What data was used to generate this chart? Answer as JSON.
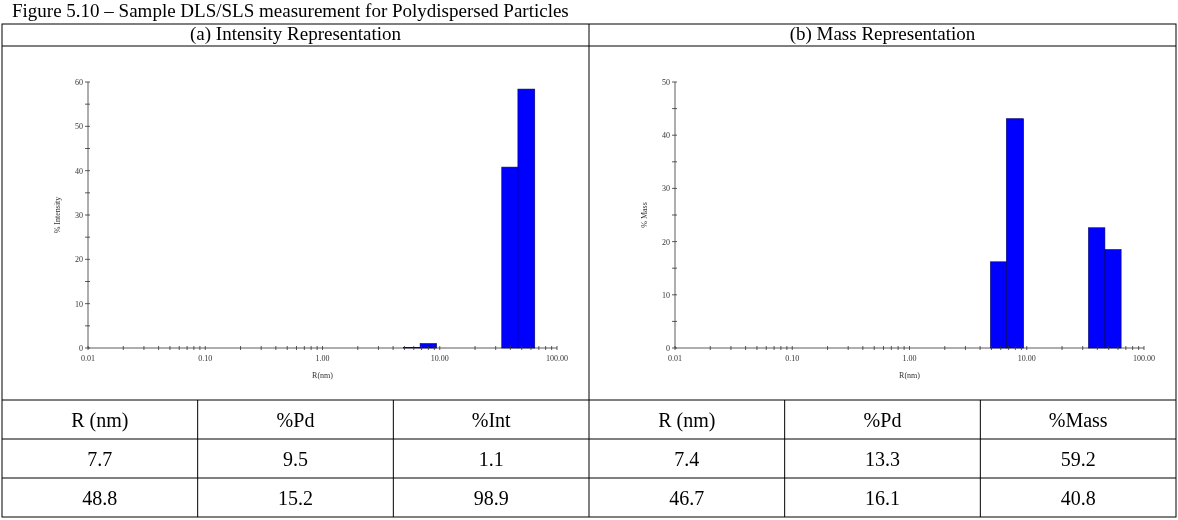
{
  "chart_data": [
    {
      "type": "histogram",
      "title": "Figure 5.10 – Sample DLS/SLS measurement for Polydispersed Particles",
      "subtitle": "(a) Intensity Representation",
      "xlabel": "R(nm)",
      "ylabel": "% Intensity",
      "log": "x",
      "color": "#0000ff",
      "bins": [
        4.9,
        6.8,
        9.4,
        33.8,
        46.4,
        64.6
      ],
      "values": [
        0.1,
        1.0,
        0,
        40.8,
        58.4
      ],
      "xlim": [
        0.01,
        100
      ],
      "xticks": [
        {
          "value": 0.01,
          "label": "0.01"
        },
        {
          "value": 0.02,
          "label": null
        },
        {
          "value": 0.03,
          "label": null
        },
        {
          "value": 0.04,
          "label": null
        },
        {
          "value": 0.05,
          "label": null
        },
        {
          "value": 0.06,
          "label": null
        },
        {
          "value": 0.07,
          "label": null
        },
        {
          "value": 0.08,
          "label": null
        },
        {
          "value": 0.09,
          "label": null
        },
        {
          "value": 0.1,
          "label": "0.10"
        },
        {
          "value": 0.2,
          "label": null
        },
        {
          "value": 0.3,
          "label": null
        },
        {
          "value": 0.4,
          "label": null
        },
        {
          "value": 0.5,
          "label": null
        },
        {
          "value": 0.6,
          "label": null
        },
        {
          "value": 0.7,
          "label": null
        },
        {
          "value": 0.8,
          "label": null
        },
        {
          "value": 0.9,
          "label": null
        },
        {
          "value": 1,
          "label": "1.00"
        },
        {
          "value": 2,
          "label": null
        },
        {
          "value": 3,
          "label": null
        },
        {
          "value": 4,
          "label": null
        },
        {
          "value": 5,
          "label": null
        },
        {
          "value": 6,
          "label": null
        },
        {
          "value": 7,
          "label": null
        },
        {
          "value": 8,
          "label": null
        },
        {
          "value": 9,
          "label": null
        },
        {
          "value": 10,
          "label": "10.00"
        },
        {
          "value": 20,
          "label": null
        },
        {
          "value": 30,
          "label": null
        },
        {
          "value": 40,
          "label": null
        },
        {
          "value": 50,
          "label": null
        },
        {
          "value": 60,
          "label": null
        },
        {
          "value": 70,
          "label": null
        },
        {
          "value": 80,
          "label": null
        },
        {
          "value": 90,
          "label": null
        },
        {
          "value": 100,
          "label": "100.00"
        }
      ],
      "ylim": [
        0,
        60
      ],
      "yticks": [
        0,
        {
          "value": 5,
          "label": null
        },
        10,
        {
          "value": 15,
          "label": null
        },
        20,
        {
          "value": 25,
          "label": null
        },
        30,
        {
          "value": 35,
          "label": null
        },
        40,
        {
          "value": 45,
          "label": null
        },
        50,
        {
          "value": 55,
          "label": null
        },
        60
      ],
      "grid": false,
      "annotations": [
        "R (nm)",
        "%Pd",
        "%Int",
        "7.7",
        "9.5",
        "1.1",
        "48.8",
        "15.2",
        "98.9"
      ]
    },
    {
      "type": "histogram",
      "subtitle": "(b) Mass Representation",
      "xlabel": "R(nm)",
      "ylabel": "% Mass",
      "log": "x",
      "color": "#0000ff",
      "bins": [
        4.9,
        6.7,
        9.4,
        33.6,
        46.4,
        63.8
      ],
      "values": [
        16.2,
        43.1,
        0,
        22.6,
        18.5
      ],
      "xlim": [
        0.01,
        100
      ],
      "xticks": [
        {
          "value": 0.01,
          "label": "0.01"
        },
        {
          "value": 0.02,
          "label": null
        },
        {
          "value": 0.03,
          "label": null
        },
        {
          "value": 0.04,
          "label": null
        },
        {
          "value": 0.05,
          "label": null
        },
        {
          "value": 0.06,
          "label": null
        },
        {
          "value": 0.07,
          "label": null
        },
        {
          "value": 0.08,
          "label": null
        },
        {
          "value": 0.09,
          "label": null
        },
        {
          "value": 0.1,
          "label": "0.10"
        },
        {
          "value": 0.2,
          "label": null
        },
        {
          "value": 0.3,
          "label": null
        },
        {
          "value": 0.4,
          "label": null
        },
        {
          "value": 0.5,
          "label": null
        },
        {
          "value": 0.6,
          "label": null
        },
        {
          "value": 0.7,
          "label": null
        },
        {
          "value": 0.8,
          "label": null
        },
        {
          "value": 0.9,
          "label": null
        },
        {
          "value": 1,
          "label": "1.00"
        },
        {
          "value": 2,
          "label": null
        },
        {
          "value": 3,
          "label": null
        },
        {
          "value": 4,
          "label": null
        },
        {
          "value": 5,
          "label": null
        },
        {
          "value": 6,
          "label": null
        },
        {
          "value": 7,
          "label": null
        },
        {
          "value": 8,
          "label": null
        },
        {
          "value": 9,
          "label": null
        },
        {
          "value": 10,
          "label": "10.00"
        },
        {
          "value": 20,
          "label": null
        },
        {
          "value": 30,
          "label": null
        },
        {
          "value": 40,
          "label": null
        },
        {
          "value": 50,
          "label": null
        },
        {
          "value": 60,
          "label": null
        },
        {
          "value": 70,
          "label": null
        },
        {
          "value": 80,
          "label": null
        },
        {
          "value": 90,
          "label": null
        },
        {
          "value": 100,
          "label": "100.00"
        }
      ],
      "ylim": [
        0,
        50
      ],
      "yticks": [
        0,
        {
          "value": 5,
          "label": null
        },
        10,
        {
          "value": 15,
          "label": null
        },
        20,
        {
          "value": 25,
          "label": null
        },
        30,
        {
          "value": 35,
          "label": null
        },
        40,
        {
          "value": 45,
          "label": null
        },
        50
      ],
      "grid": false,
      "annotations": [
        "R (nm)",
        "%Pd",
        "%Mass",
        "7.4",
        "13.3",
        "59.2",
        "46.7",
        "16.1",
        "40.8"
      ]
    }
  ]
}
